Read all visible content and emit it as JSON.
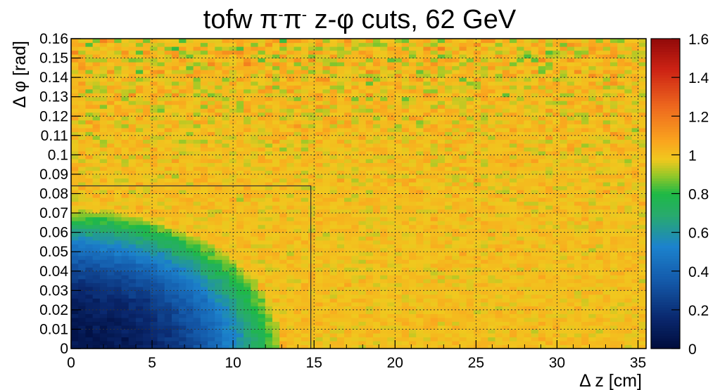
{
  "chart_data": {
    "type": "heatmap",
    "title_parts": [
      "tofw ",
      "π",
      "-",
      "π",
      "-",
      "  z-",
      "φ",
      " cuts, 62 GeV"
    ],
    "xlabel": "Δ z [cm]",
    "ylabel": "Δ φ [rad]",
    "xlim": [
      0,
      35.5
    ],
    "ylim": [
      0,
      0.16
    ],
    "x_ticks": [
      0,
      5,
      10,
      15,
      20,
      25,
      30,
      35
    ],
    "x_tick_labels": [
      "0",
      "5",
      "10",
      "15",
      "20",
      "25",
      "30",
      "35"
    ],
    "y_ticks": [
      0,
      0.01,
      0.02,
      0.03,
      0.04,
      0.05,
      0.06,
      0.07,
      0.08,
      0.09,
      0.1,
      0.11,
      0.12,
      0.13,
      0.14,
      0.15,
      0.16
    ],
    "y_tick_labels": [
      "0",
      "0.01",
      "0.02",
      "0.03",
      "0.04",
      "0.05",
      "0.06",
      "0.07",
      "0.08",
      "0.09",
      "0.1",
      "0.11",
      "0.12",
      "0.13",
      "0.14",
      "0.15",
      "0.16"
    ],
    "colorbar": {
      "range": [
        0,
        1.6
      ],
      "ticks": [
        0,
        0.2,
        0.4,
        0.6,
        0.8,
        1,
        1.2,
        1.4,
        1.6
      ],
      "tick_labels": [
        "0",
        "0.2",
        "0.4",
        "0.6",
        "0.8",
        "1",
        "1.2",
        "1.4",
        "1.6"
      ]
    },
    "bins": {
      "nx": 80,
      "ny": 80
    },
    "description_values": {
      "dip_center": [
        0,
        0
      ],
      "dip_min_value": 0.05,
      "dip_extent_z": 13,
      "dip_extent_phi": 0.072,
      "plateau_value": 1.0
    },
    "cut_box": {
      "z_max": 14.8,
      "phi_max": 0.084
    },
    "grid": true
  }
}
